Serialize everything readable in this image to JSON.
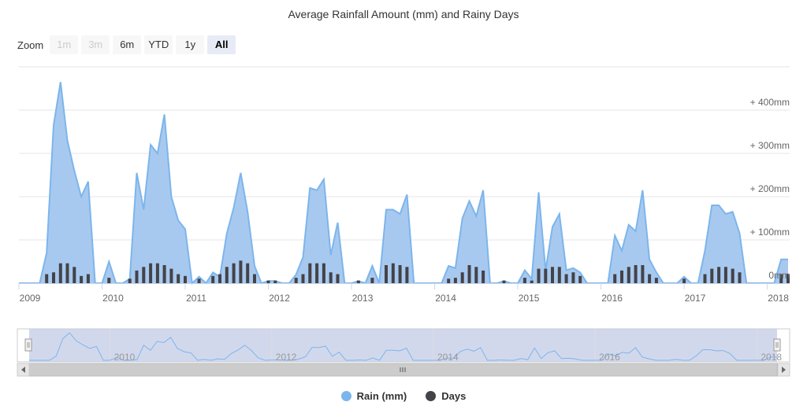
{
  "title": "Average Rainfall Amount (mm) and Rainy Days",
  "zoom": {
    "label": "Zoom",
    "buttons": [
      {
        "label": "1m",
        "state": "disabled"
      },
      {
        "label": "3m",
        "state": "disabled"
      },
      {
        "label": "6m",
        "state": "normal"
      },
      {
        "label": "YTD",
        "state": "normal"
      },
      {
        "label": "1y",
        "state": "normal"
      },
      {
        "label": "All",
        "state": "selected"
      }
    ]
  },
  "legend": {
    "rain_label": "Rain (mm)",
    "days_label": "Days"
  },
  "colors": {
    "rain_fill": "#a8c9ef",
    "rain_line": "#7cb5ec",
    "days_bar": "#434348",
    "navigator_mask": "#c3cbe6",
    "grid": "#e6e6e6"
  },
  "chart_data": {
    "type": "area",
    "title": "Average Rainfall Amount (mm) and Rainy Days",
    "x_start": "2009-01",
    "x_end": "2018-05",
    "x_tick_labels": [
      "2009",
      "2010",
      "2011",
      "2012",
      "2013",
      "2014",
      "2015",
      "2016",
      "2017",
      "2018"
    ],
    "y_axis": {
      "ticks": [
        0,
        100,
        200,
        300,
        400
      ],
      "labels": [
        "0mm",
        "+ 100mm",
        "+ 200mm",
        "+ 300mm",
        "+ 400mm"
      ],
      "ylim": [
        0,
        480
      ]
    },
    "navigator_tick_labels": [
      "2010",
      "2012",
      "2014",
      "2016",
      "2018"
    ],
    "series": [
      {
        "name": "Rain (mm)",
        "type": "area",
        "values": [
          0,
          0,
          0,
          0,
          70,
          365,
          465,
          330,
          260,
          200,
          235,
          0,
          0,
          50,
          0,
          0,
          10,
          255,
          170,
          320,
          300,
          390,
          200,
          145,
          125,
          0,
          15,
          0,
          25,
          15,
          115,
          175,
          255,
          165,
          40,
          0,
          5,
          5,
          0,
          0,
          20,
          60,
          220,
          215,
          240,
          65,
          140,
          0,
          0,
          5,
          0,
          40,
          0,
          170,
          170,
          160,
          205,
          0,
          0,
          0,
          0,
          0,
          40,
          35,
          150,
          190,
          155,
          215,
          0,
          0,
          5,
          0,
          0,
          30,
          10,
          210,
          30,
          130,
          160,
          30,
          35,
          25,
          0,
          0,
          0,
          0,
          110,
          75,
          135,
          120,
          215,
          55,
          25,
          0,
          0,
          0,
          15,
          0,
          0,
          75,
          180,
          180,
          160,
          165,
          115,
          0,
          0,
          0,
          0,
          0,
          55,
          55
        ]
      },
      {
        "name": "Days",
        "type": "column",
        "values": [
          0,
          0,
          0,
          0,
          10,
          12,
          22,
          22,
          18,
          8,
          10,
          0,
          0,
          6,
          0,
          0,
          5,
          14,
          18,
          22,
          22,
          20,
          16,
          10,
          8,
          0,
          5,
          0,
          8,
          10,
          18,
          22,
          25,
          22,
          10,
          0,
          3,
          3,
          0,
          0,
          6,
          10,
          22,
          22,
          22,
          12,
          10,
          0,
          0,
          3,
          0,
          6,
          0,
          20,
          22,
          20,
          18,
          0,
          0,
          0,
          0,
          0,
          5,
          6,
          12,
          20,
          18,
          14,
          0,
          0,
          3,
          0,
          0,
          6,
          3,
          16,
          16,
          18,
          18,
          10,
          12,
          8,
          0,
          0,
          0,
          0,
          10,
          14,
          18,
          20,
          20,
          10,
          6,
          0,
          0,
          0,
          5,
          0,
          0,
          10,
          16,
          18,
          18,
          16,
          12,
          0,
          0,
          0,
          0,
          0,
          10,
          10
        ]
      }
    ]
  }
}
